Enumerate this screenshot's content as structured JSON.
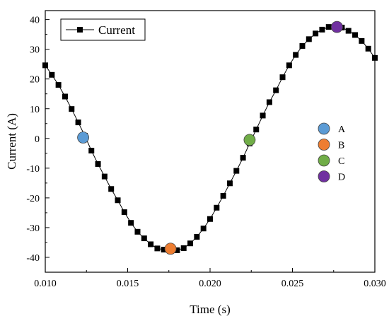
{
  "chart_data": {
    "type": "line",
    "title": "",
    "xlabel": "Time (s)",
    "ylabel": "Current (A)",
    "xlim": [
      0.01,
      0.03
    ],
    "ylim": [
      -45,
      43
    ],
    "x_ticks": [
      0.01,
      0.015,
      0.02,
      0.025,
      0.03
    ],
    "x_tick_labels": [
      "0.010",
      "0.015",
      "0.020",
      "0.025",
      "0.030"
    ],
    "y_ticks": [
      -40,
      -30,
      -20,
      -10,
      0,
      10,
      20,
      30,
      40
    ],
    "y_tick_labels": [
      "-40",
      "-30",
      "-20",
      "-10",
      "0",
      "10",
      "20",
      "30",
      "40"
    ],
    "grid": false,
    "legend_position": "top-left",
    "series": [
      {
        "name": "Current",
        "color": "#000000",
        "marker": "square",
        "x": [
          0.01,
          0.0104,
          0.0108,
          0.0112,
          0.0116,
          0.012,
          0.0124,
          0.0128,
          0.0132,
          0.0136,
          0.014,
          0.0144,
          0.0148,
          0.0152,
          0.0156,
          0.016,
          0.0164,
          0.0168,
          0.0172,
          0.0176,
          0.018,
          0.0184,
          0.0188,
          0.0192,
          0.0196,
          0.02,
          0.0204,
          0.0208,
          0.0212,
          0.0216,
          0.022,
          0.0224,
          0.0228,
          0.0232,
          0.0236,
          0.024,
          0.0244,
          0.0248,
          0.0252,
          0.0256,
          0.026,
          0.0264,
          0.0268,
          0.0272,
          0.0276,
          0.028,
          0.0284,
          0.0288,
          0.0292,
          0.0296,
          0.03
        ],
        "values": [
          24.6,
          21.4,
          18.0,
          14.1,
          9.9,
          5.4,
          0.9,
          -4.1,
          -8.6,
          -12.8,
          -17.0,
          -20.8,
          -24.8,
          -28.4,
          -31.4,
          -33.6,
          -35.6,
          -37.0,
          -37.4,
          -37.6,
          -37.6,
          -36.9,
          -35.3,
          -33.1,
          -30.3,
          -27.1,
          -23.3,
          -19.3,
          -15.1,
          -10.9,
          -6.5,
          -1.7,
          3.0,
          7.7,
          12.2,
          16.2,
          20.6,
          24.6,
          28.1,
          31.1,
          33.4,
          35.3,
          36.6,
          37.5,
          37.5,
          37.3,
          36.2,
          34.8,
          32.8,
          30.2,
          27.1
        ]
      }
    ],
    "highlight_points": [
      {
        "label": "A",
        "x": 0.0123,
        "y": 0.3,
        "color": "#5b9bd5"
      },
      {
        "label": "B",
        "x": 0.0176,
        "y": -37.1,
        "color": "#ed7d31"
      },
      {
        "label": "C",
        "x": 0.0224,
        "y": -0.5,
        "color": "#70ad47"
      },
      {
        "label": "D",
        "x": 0.0277,
        "y": 37.5,
        "color": "#7030a0"
      }
    ],
    "marker_legend_position": "right-center"
  }
}
